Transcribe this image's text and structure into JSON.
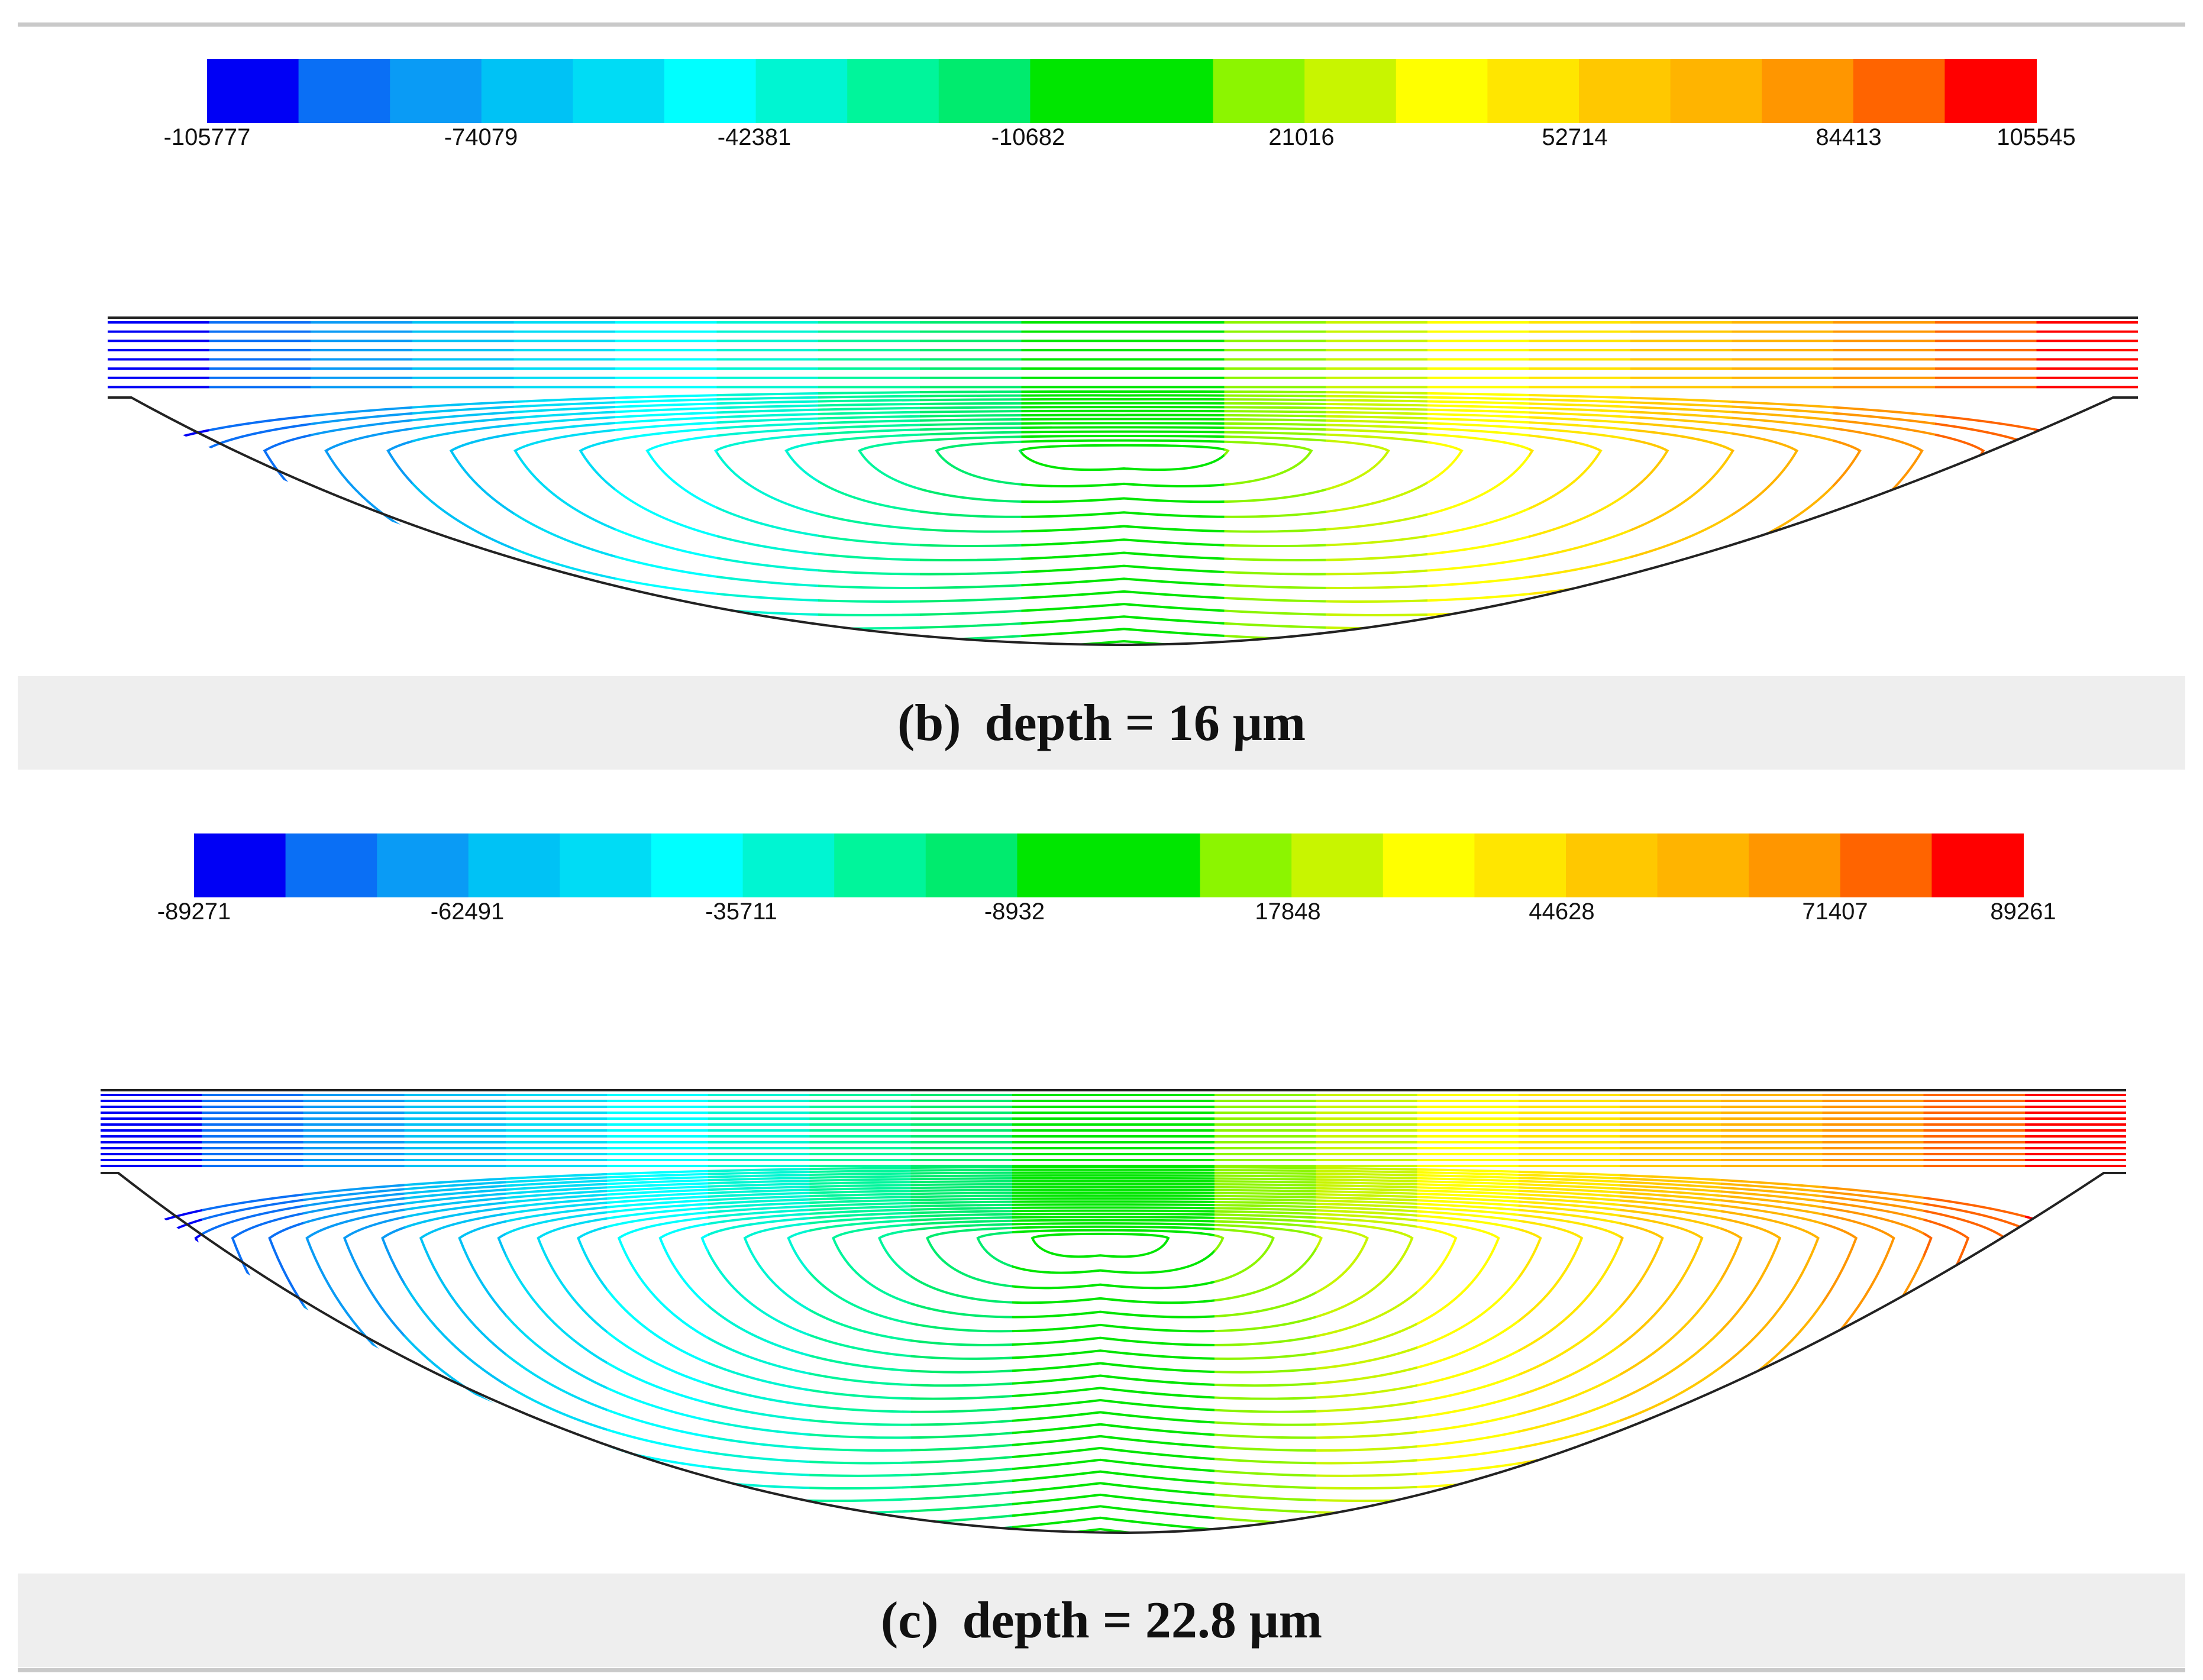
{
  "figure": {
    "panels": [
      {
        "id": "b",
        "tag": "(b)",
        "caption_text": "depth = 16 μm",
        "colorbar_ticks": [
          "-105777",
          "-74079",
          "-42381",
          "-10682",
          "21016",
          "52714",
          "84413",
          "105545"
        ],
        "line_count": 22,
        "value_range": [
          -105777,
          105545
        ]
      },
      {
        "id": "c",
        "tag": "(c)",
        "caption_text": "depth = 22.8 μm",
        "colorbar_ticks": [
          "-89271",
          "-62491",
          "-35711",
          "-8932",
          "17848",
          "44628",
          "71407",
          "89261"
        ],
        "line_count": 36,
        "value_range": [
          -89271,
          89261
        ]
      }
    ],
    "colormap": [
      "#0000f5",
      "#0a6ff5",
      "#0a9bf5",
      "#00c2f5",
      "#00dcf5",
      "#00ffff",
      "#00f5d2",
      "#00f59b",
      "#00eb6e",
      "#00e600",
      "#00e600",
      "#8cf500",
      "#c8f500",
      "#ffff00",
      "#ffe600",
      "#ffc800",
      "#ffb400",
      "#ff9600",
      "#ff6400",
      "#ff0000"
    ],
    "colorbar_bins": [
      0,
      1,
      2,
      3,
      4,
      5,
      6,
      7,
      8,
      9,
      10,
      11,
      12,
      13,
      14,
      15,
      16,
      17,
      18,
      19
    ],
    "outline_color": "#222222"
  }
}
